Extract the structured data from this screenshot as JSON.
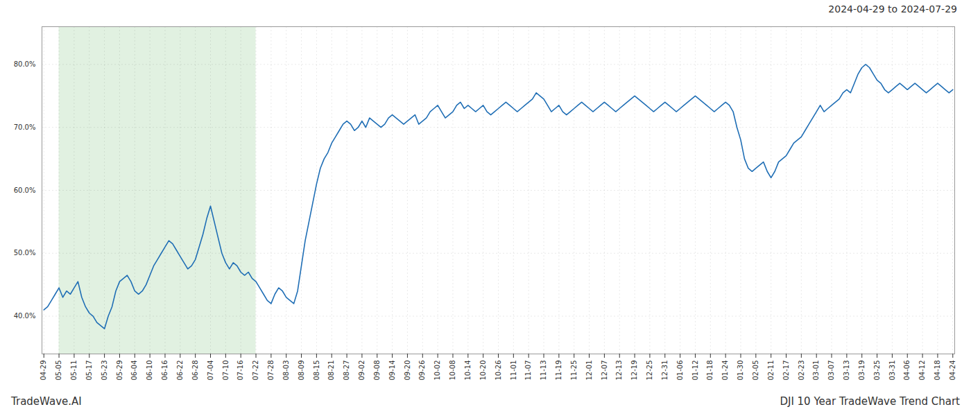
{
  "chart_data": {
    "type": "line",
    "title": "2024-04-29 to 2024-07-29",
    "annotations": [
      "TradeWave.AI",
      "DJI 10 Year TradeWave Trend Chart"
    ],
    "color": "#1f6eb5",
    "grid": true,
    "ylim": [
      34,
      86
    ],
    "yticks": [
      {
        "value": 40,
        "label": "40.0%"
      },
      {
        "value": 50,
        "label": "50.0%"
      },
      {
        "value": 60,
        "label": "60.0%"
      },
      {
        "value": 70,
        "label": "70.0%"
      },
      {
        "value": 80,
        "label": "80.0%"
      }
    ],
    "shading": {
      "start": "05-05",
      "end": "07-22",
      "color": "#c8e6c8"
    },
    "categories": [
      "04-29",
      null,
      null,
      null,
      "05-05",
      null,
      null,
      null,
      "05-11",
      null,
      null,
      null,
      "05-17",
      null,
      null,
      null,
      "05-23",
      null,
      null,
      null,
      "05-29",
      null,
      null,
      null,
      "06-04",
      null,
      null,
      null,
      "06-10",
      null,
      null,
      null,
      "06-16",
      null,
      null,
      null,
      "06-22",
      null,
      null,
      null,
      "06-28",
      null,
      null,
      null,
      "07-04",
      null,
      null,
      null,
      "07-10",
      null,
      null,
      null,
      "07-16",
      null,
      null,
      null,
      "07-22",
      null,
      null,
      null,
      "07-28",
      null,
      null,
      null,
      "08-03",
      null,
      null,
      null,
      "08-09",
      null,
      null,
      null,
      "08-15",
      null,
      null,
      null,
      "08-21",
      null,
      null,
      null,
      "08-27",
      null,
      null,
      null,
      "09-02",
      null,
      null,
      null,
      "09-08",
      null,
      null,
      null,
      "09-14",
      null,
      null,
      null,
      "09-20",
      null,
      null,
      null,
      "09-26",
      null,
      null,
      null,
      "10-02",
      null,
      null,
      null,
      "10-08",
      null,
      null,
      null,
      "10-14",
      null,
      null,
      null,
      "10-20",
      null,
      null,
      null,
      "10-26",
      null,
      null,
      null,
      "11-01",
      null,
      null,
      null,
      "11-07",
      null,
      null,
      null,
      "11-13",
      null,
      null,
      null,
      "11-19",
      null,
      null,
      null,
      "11-25",
      null,
      null,
      null,
      "12-01",
      null,
      null,
      null,
      "12-07",
      null,
      null,
      null,
      "12-13",
      null,
      null,
      null,
      "12-19",
      null,
      null,
      null,
      "12-25",
      null,
      null,
      null,
      "12-31",
      null,
      null,
      null,
      "01-06",
      null,
      null,
      null,
      "01-12",
      null,
      null,
      null,
      "01-18",
      null,
      null,
      null,
      "01-24",
      null,
      null,
      null,
      "01-30",
      null,
      null,
      null,
      "02-05",
      null,
      null,
      null,
      "02-11",
      null,
      null,
      null,
      "02-17",
      null,
      null,
      null,
      "02-23",
      null,
      null,
      null,
      "03-01",
      null,
      null,
      null,
      "03-07",
      null,
      null,
      null,
      "03-13",
      null,
      null,
      null,
      "03-19",
      null,
      null,
      null,
      "03-25",
      null,
      null,
      null,
      "03-31",
      null,
      null,
      null,
      "04-06",
      null,
      null,
      null,
      "04-12",
      null,
      null,
      null,
      "04-18",
      null,
      null,
      null,
      "04-24"
    ],
    "values": [
      41.0,
      41.5,
      42.5,
      43.5,
      44.5,
      43.0,
      44.0,
      43.5,
      44.5,
      45.5,
      43.0,
      41.5,
      40.5,
      40.0,
      39.0,
      38.5,
      38.0,
      40.0,
      41.5,
      44.0,
      45.5,
      46.0,
      46.5,
      45.5,
      44.0,
      43.5,
      44.0,
      45.0,
      46.5,
      48.0,
      49.0,
      50.0,
      51.0,
      52.0,
      51.5,
      50.5,
      49.5,
      48.5,
      47.5,
      48.0,
      49.0,
      51.0,
      53.0,
      55.5,
      57.5,
      55.0,
      52.5,
      50.0,
      48.5,
      47.5,
      48.5,
      48.0,
      47.0,
      46.5,
      47.0,
      46.0,
      45.5,
      44.5,
      43.5,
      42.5,
      42.0,
      43.5,
      44.5,
      44.0,
      43.0,
      42.5,
      42.0,
      44.0,
      48.0,
      52.0,
      55.0,
      58.0,
      61.0,
      63.5,
      65.0,
      66.0,
      67.5,
      68.5,
      69.5,
      70.5,
      71.0,
      70.5,
      69.5,
      70.0,
      71.0,
      70.0,
      71.5,
      71.0,
      70.5,
      70.0,
      70.5,
      71.5,
      72.0,
      71.5,
      71.0,
      70.5,
      71.0,
      71.5,
      72.0,
      70.5,
      71.0,
      71.5,
      72.5,
      73.0,
      73.5,
      72.5,
      71.5,
      72.0,
      72.5,
      73.5,
      74.0,
      73.0,
      73.5,
      73.0,
      72.5,
      73.0,
      73.5,
      72.5,
      72.0,
      72.5,
      73.0,
      73.5,
      74.0,
      73.5,
      73.0,
      72.5,
      73.0,
      73.5,
      74.0,
      74.5,
      75.5,
      75.0,
      74.5,
      73.5,
      72.5,
      73.0,
      73.5,
      72.5,
      72.0,
      72.5,
      73.0,
      73.5,
      74.0,
      73.5,
      73.0,
      72.5,
      73.0,
      73.5,
      74.0,
      73.5,
      73.0,
      72.5,
      73.0,
      73.5,
      74.0,
      74.5,
      75.0,
      74.5,
      74.0,
      73.5,
      73.0,
      72.5,
      73.0,
      73.5,
      74.0,
      73.5,
      73.0,
      72.5,
      73.0,
      73.5,
      74.0,
      74.5,
      75.0,
      74.5,
      74.0,
      73.5,
      73.0,
      72.5,
      73.0,
      73.5,
      74.0,
      73.5,
      72.5,
      70.0,
      68.0,
      65.0,
      63.5,
      63.0,
      63.5,
      64.0,
      64.5,
      63.0,
      62.0,
      63.0,
      64.5,
      65.0,
      65.5,
      66.5,
      67.5,
      68.0,
      68.5,
      69.5,
      70.5,
      71.5,
      72.5,
      73.5,
      72.5,
      73.0,
      73.5,
      74.0,
      74.5,
      75.5,
      76.0,
      75.5,
      77.0,
      78.5,
      79.5,
      80.0,
      79.5,
      78.5,
      77.5,
      77.0,
      76.0,
      75.5,
      76.0,
      76.5,
      77.0,
      76.5,
      76.0,
      76.5,
      77.0,
      76.5,
      76.0,
      75.5,
      76.0,
      76.5,
      77.0,
      76.5,
      76.0,
      75.5,
      76.0
    ]
  }
}
